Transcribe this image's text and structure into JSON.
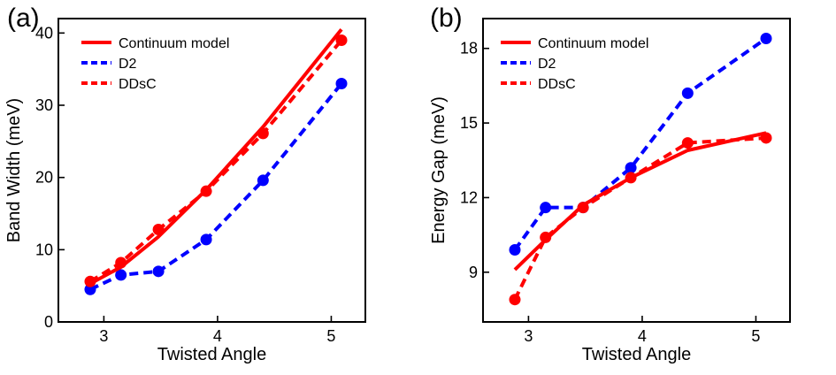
{
  "chart_data": [
    {
      "type": "line",
      "panel_label": "(a)",
      "xlabel": "Twisted Angle",
      "ylabel": "Band Width (meV)",
      "xlim": [
        2.6,
        5.3
      ],
      "ylim": [
        0,
        42
      ],
      "xticks": [
        3,
        4,
        5
      ],
      "xtick_labels": [
        "3",
        "4",
        "5"
      ],
      "yticks": [
        0,
        10,
        20,
        30,
        40
      ],
      "ytick_labels": [
        "0",
        "10",
        "20",
        "30",
        "40"
      ],
      "grid": false,
      "legend_position": "top-left",
      "series": [
        {
          "name": "Continuum model",
          "color": "#ff0000",
          "style": "solid",
          "markers": false,
          "x": [
            2.88,
            3.15,
            3.48,
            3.9,
            4.4,
            5.09
          ],
          "y": [
            5.3,
            7.6,
            11.8,
            18.3,
            27.0,
            40.5
          ]
        },
        {
          "name": "D2",
          "color": "#0000ff",
          "style": "dashed",
          "markers": true,
          "x": [
            2.88,
            3.15,
            3.48,
            3.9,
            4.4,
            5.09
          ],
          "y": [
            4.5,
            6.5,
            7.0,
            11.4,
            19.6,
            33.0
          ]
        },
        {
          "name": "DDsC",
          "color": "#ff0000",
          "style": "dashed",
          "markers": true,
          "x": [
            2.88,
            3.15,
            3.48,
            3.9,
            4.4,
            5.09
          ],
          "y": [
            5.6,
            8.2,
            12.8,
            18.1,
            26.1,
            39.0
          ]
        }
      ]
    },
    {
      "type": "line",
      "panel_label": "(b)",
      "xlabel": "Twisted Angle",
      "ylabel": "Energy Gap (meV)",
      "xlim": [
        2.6,
        5.3
      ],
      "ylim": [
        7.0,
        19.2
      ],
      "xticks": [
        3,
        4,
        5
      ],
      "xtick_labels": [
        "3",
        "4",
        "5"
      ],
      "yticks": [
        9,
        12,
        15,
        18
      ],
      "ytick_labels": [
        "9",
        "12",
        "15",
        "18"
      ],
      "grid": false,
      "legend_position": "top-left",
      "series": [
        {
          "name": "Continuum model",
          "color": "#ff0000",
          "style": "solid",
          "markers": false,
          "x": [
            2.88,
            3.15,
            3.48,
            3.9,
            4.4,
            5.09
          ],
          "y": [
            9.1,
            10.3,
            11.7,
            12.8,
            13.9,
            14.6
          ]
        },
        {
          "name": "D2",
          "color": "#0000ff",
          "style": "dashed",
          "markers": true,
          "x": [
            2.88,
            3.15,
            3.48,
            3.9,
            4.4,
            5.09
          ],
          "y": [
            9.9,
            11.6,
            11.6,
            13.2,
            16.2,
            18.4
          ]
        },
        {
          "name": "DDsC",
          "color": "#ff0000",
          "style": "dashed",
          "markers": true,
          "x": [
            2.88,
            3.15,
            3.48,
            3.9,
            4.4,
            5.09
          ],
          "y": [
            7.9,
            10.4,
            11.6,
            12.8,
            14.2,
            14.4
          ]
        }
      ]
    }
  ]
}
